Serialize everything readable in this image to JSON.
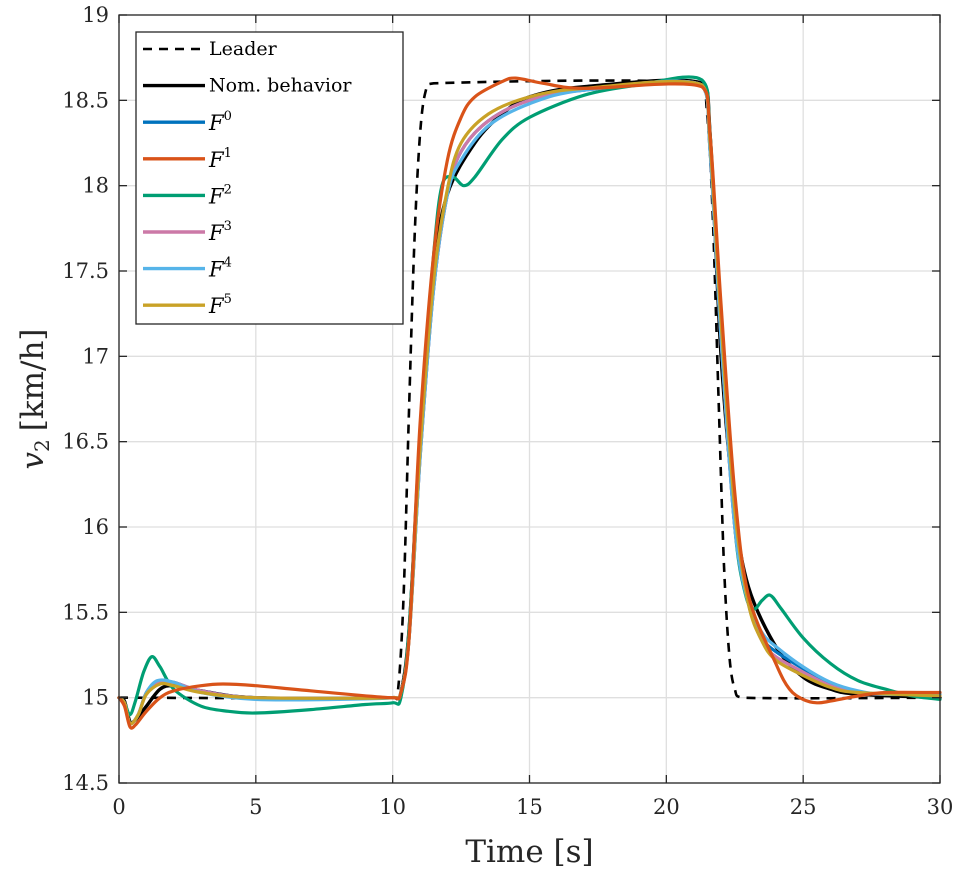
{
  "chart_data": {
    "type": "line",
    "title": "",
    "xlabel": "Time [s]",
    "ylabel_var": "v",
    "ylabel_sub": "2",
    "ylabel_unit": "[km/h]",
    "xlim": [
      0,
      30
    ],
    "ylim": [
      14.5,
      19
    ],
    "xticks": [
      0,
      5,
      10,
      15,
      20,
      25,
      30
    ],
    "yticks": [
      14.5,
      15,
      15.5,
      16,
      16.5,
      17,
      17.5,
      18,
      18.5,
      19
    ],
    "xtick_labels": [
      "0",
      "5",
      "10",
      "15",
      "20",
      "25",
      "30"
    ],
    "ytick_labels": [
      "14.5",
      "15",
      "15.5",
      "16",
      "16.5",
      "17",
      "17.5",
      "18",
      "18.5",
      "19"
    ],
    "grid": true,
    "legend_position": "top-left",
    "series": [
      {
        "name": "Leader",
        "label_text": "Leader",
        "color": "#000000",
        "dash": true,
        "width": 2.6,
        "points": [
          [
            0,
            15
          ],
          [
            10,
            15
          ],
          [
            10.2,
            15.05
          ],
          [
            10.4,
            15.6
          ],
          [
            10.6,
            16.7
          ],
          [
            10.8,
            17.7
          ],
          [
            11.0,
            18.3
          ],
          [
            11.2,
            18.55
          ],
          [
            11.5,
            18.6
          ],
          [
            21.2,
            18.6
          ],
          [
            21.5,
            18.4
          ],
          [
            21.7,
            17.8
          ],
          [
            21.9,
            16.8
          ],
          [
            22.1,
            15.8
          ],
          [
            22.3,
            15.25
          ],
          [
            22.5,
            15.05
          ],
          [
            22.8,
            15.0
          ],
          [
            30,
            15
          ]
        ]
      },
      {
        "name": "Nom. behavior",
        "label_text": "Nom. behavior",
        "color": "#000000",
        "dash": false,
        "width": 3.4,
        "points": [
          [
            0,
            15
          ],
          [
            0.2,
            14.98
          ],
          [
            0.4,
            14.86
          ],
          [
            0.6,
            14.87
          ],
          [
            1.0,
            14.95
          ],
          [
            1.5,
            15.05
          ],
          [
            2.0,
            15.07
          ],
          [
            3.0,
            15.04
          ],
          [
            5.0,
            15.0
          ],
          [
            10.0,
            15.0
          ],
          [
            10.3,
            15.03
          ],
          [
            10.6,
            15.4
          ],
          [
            11.0,
            16.5
          ],
          [
            11.5,
            17.5
          ],
          [
            12.0,
            17.95
          ],
          [
            13.0,
            18.25
          ],
          [
            14.0,
            18.42
          ],
          [
            15.0,
            18.52
          ],
          [
            17.0,
            18.58
          ],
          [
            21.3,
            18.6
          ],
          [
            21.6,
            18.3
          ],
          [
            22.0,
            17.0
          ],
          [
            22.5,
            16.1
          ],
          [
            23.0,
            15.65
          ],
          [
            24.0,
            15.3
          ],
          [
            25.0,
            15.12
          ],
          [
            26.0,
            15.05
          ],
          [
            27.0,
            15.02
          ],
          [
            30.0,
            15.0
          ]
        ]
      },
      {
        "name": "F0",
        "label_sym": "F",
        "label_sup": "0",
        "color": "#0072BD",
        "dash": false,
        "width": 3.2,
        "points": [
          [
            0,
            15
          ],
          [
            0.2,
            14.97
          ],
          [
            0.4,
            14.85
          ],
          [
            0.7,
            14.9
          ],
          [
            1.0,
            15.03
          ],
          [
            1.4,
            15.09
          ],
          [
            2.0,
            15.09
          ],
          [
            3.0,
            15.04
          ],
          [
            5.0,
            15.0
          ],
          [
            10.0,
            15.0
          ],
          [
            10.3,
            15.03
          ],
          [
            10.6,
            15.35
          ],
          [
            11.0,
            16.4
          ],
          [
            11.5,
            17.4
          ],
          [
            12.0,
            17.95
          ],
          [
            12.5,
            18.2
          ],
          [
            13.5,
            18.38
          ],
          [
            15.0,
            18.5
          ],
          [
            17.0,
            18.56
          ],
          [
            21.3,
            18.59
          ],
          [
            21.6,
            18.2
          ],
          [
            22.0,
            17.1
          ],
          [
            22.5,
            16.0
          ],
          [
            23.0,
            15.55
          ],
          [
            23.5,
            15.35
          ],
          [
            24.0,
            15.27
          ],
          [
            25.0,
            15.17
          ],
          [
            26.0,
            15.08
          ],
          [
            27.0,
            15.03
          ],
          [
            28.0,
            15.02
          ],
          [
            30.0,
            15.02
          ]
        ]
      },
      {
        "name": "F1",
        "label_sym": "F",
        "label_sup": "1",
        "color": "#D95319",
        "dash": false,
        "width": 3.2,
        "points": [
          [
            0,
            15
          ],
          [
            0.2,
            14.95
          ],
          [
            0.4,
            14.83
          ],
          [
            0.6,
            14.84
          ],
          [
            1.0,
            14.92
          ],
          [
            1.5,
            15.0
          ],
          [
            2.0,
            15.04
          ],
          [
            3.0,
            15.07
          ],
          [
            3.8,
            15.08
          ],
          [
            5.0,
            15.07
          ],
          [
            7.0,
            15.04
          ],
          [
            10.0,
            15.0
          ],
          [
            10.3,
            15.03
          ],
          [
            10.6,
            15.35
          ],
          [
            11.0,
            16.6
          ],
          [
            11.5,
            17.6
          ],
          [
            12.0,
            18.15
          ],
          [
            12.5,
            18.4
          ],
          [
            13.0,
            18.52
          ],
          [
            14.0,
            18.61
          ],
          [
            14.5,
            18.63
          ],
          [
            15.5,
            18.6
          ],
          [
            17.0,
            18.57
          ],
          [
            21.3,
            18.58
          ],
          [
            21.6,
            18.3
          ],
          [
            22.0,
            17.3
          ],
          [
            22.5,
            16.2
          ],
          [
            23.0,
            15.6
          ],
          [
            24.0,
            15.2
          ],
          [
            24.5,
            15.05
          ],
          [
            25.0,
            14.99
          ],
          [
            25.5,
            14.97
          ],
          [
            26.0,
            14.98
          ],
          [
            27.0,
            15.01
          ],
          [
            28.0,
            15.03
          ],
          [
            30.0,
            15.03
          ]
        ]
      },
      {
        "name": "F2",
        "label_sym": "F",
        "label_sup": "2",
        "color": "#009E73",
        "dash": false,
        "width": 3.2,
        "points": [
          [
            0,
            15
          ],
          [
            0.2,
            14.97
          ],
          [
            0.4,
            14.9
          ],
          [
            0.6,
            14.98
          ],
          [
            0.9,
            15.15
          ],
          [
            1.2,
            15.24
          ],
          [
            1.5,
            15.18
          ],
          [
            2.0,
            15.05
          ],
          [
            3.0,
            14.95
          ],
          [
            4.0,
            14.92
          ],
          [
            5.0,
            14.91
          ],
          [
            7.0,
            14.93
          ],
          [
            9.0,
            14.96
          ],
          [
            10.0,
            14.97
          ],
          [
            10.3,
            15.0
          ],
          [
            10.6,
            15.4
          ],
          [
            11.0,
            16.55
          ],
          [
            11.5,
            17.6
          ],
          [
            11.8,
            18.0
          ],
          [
            12.2,
            18.05
          ],
          [
            12.6,
            18.0
          ],
          [
            13.0,
            18.05
          ],
          [
            14.0,
            18.27
          ],
          [
            15.0,
            18.4
          ],
          [
            17.0,
            18.53
          ],
          [
            19.0,
            18.59
          ],
          [
            21.3,
            18.62
          ],
          [
            21.6,
            18.3
          ],
          [
            22.0,
            17.2
          ],
          [
            22.5,
            16.0
          ],
          [
            22.9,
            15.6
          ],
          [
            23.2,
            15.52
          ],
          [
            23.5,
            15.57
          ],
          [
            23.8,
            15.6
          ],
          [
            24.2,
            15.52
          ],
          [
            25.0,
            15.35
          ],
          [
            26.0,
            15.2
          ],
          [
            27.0,
            15.1
          ],
          [
            28.0,
            15.05
          ],
          [
            29.0,
            15.01
          ],
          [
            30.0,
            14.99
          ]
        ]
      },
      {
        "name": "F3",
        "label_sym": "F",
        "label_sup": "3",
        "color": "#CC79A7",
        "dash": false,
        "width": 3.2,
        "points": [
          [
            0,
            15
          ],
          [
            0.2,
            14.97
          ],
          [
            0.4,
            14.85
          ],
          [
            0.7,
            14.9
          ],
          [
            1.0,
            15.03
          ],
          [
            1.4,
            15.09
          ],
          [
            2.0,
            15.09
          ],
          [
            3.0,
            15.04
          ],
          [
            5.0,
            15.0
          ],
          [
            10.0,
            15.0
          ],
          [
            10.3,
            15.03
          ],
          [
            10.6,
            15.35
          ],
          [
            11.0,
            16.4
          ],
          [
            11.5,
            17.4
          ],
          [
            12.0,
            17.95
          ],
          [
            12.5,
            18.2
          ],
          [
            13.5,
            18.38
          ],
          [
            15.0,
            18.5
          ],
          [
            17.0,
            18.56
          ],
          [
            21.3,
            18.59
          ],
          [
            21.6,
            18.2
          ],
          [
            22.0,
            17.1
          ],
          [
            22.5,
            16.0
          ],
          [
            23.0,
            15.55
          ],
          [
            23.5,
            15.33
          ],
          [
            24.0,
            15.24
          ],
          [
            25.0,
            15.15
          ],
          [
            26.0,
            15.07
          ],
          [
            27.0,
            15.03
          ],
          [
            28.0,
            15.02
          ],
          [
            30.0,
            15.02
          ]
        ]
      },
      {
        "name": "F4",
        "label_sym": "F",
        "label_sup": "4",
        "color": "#56B4E9",
        "dash": false,
        "width": 3.2,
        "points": [
          [
            0,
            15
          ],
          [
            0.2,
            14.97
          ],
          [
            0.4,
            14.85
          ],
          [
            0.7,
            14.9
          ],
          [
            1.0,
            15.03
          ],
          [
            1.4,
            15.1
          ],
          [
            2.0,
            15.09
          ],
          [
            3.0,
            15.03
          ],
          [
            5.0,
            14.99
          ],
          [
            8.0,
            14.99
          ],
          [
            10.0,
            15.0
          ],
          [
            10.3,
            15.03
          ],
          [
            10.6,
            15.35
          ],
          [
            11.0,
            16.4
          ],
          [
            11.5,
            17.4
          ],
          [
            12.0,
            17.95
          ],
          [
            12.5,
            18.15
          ],
          [
            13.5,
            18.35
          ],
          [
            15.0,
            18.48
          ],
          [
            17.0,
            18.56
          ],
          [
            21.3,
            18.59
          ],
          [
            21.6,
            18.2
          ],
          [
            22.0,
            17.1
          ],
          [
            22.5,
            16.0
          ],
          [
            23.0,
            15.55
          ],
          [
            23.5,
            15.38
          ],
          [
            24.0,
            15.3
          ],
          [
            25.0,
            15.18
          ],
          [
            26.0,
            15.09
          ],
          [
            27.0,
            15.04
          ],
          [
            28.0,
            15.02
          ],
          [
            30.0,
            15.02
          ]
        ]
      },
      {
        "name": "F5",
        "label_sym": "F",
        "label_sup": "5",
        "color": "#C9A227",
        "dash": false,
        "width": 3.2,
        "points": [
          [
            0,
            15
          ],
          [
            0.2,
            14.97
          ],
          [
            0.4,
            14.85
          ],
          [
            0.7,
            14.9
          ],
          [
            1.0,
            15.02
          ],
          [
            1.5,
            15.08
          ],
          [
            2.0,
            15.07
          ],
          [
            3.0,
            15.03
          ],
          [
            5.0,
            15.0
          ],
          [
            10.0,
            15.0
          ],
          [
            10.3,
            15.03
          ],
          [
            10.6,
            15.35
          ],
          [
            11.0,
            16.45
          ],
          [
            11.5,
            17.45
          ],
          [
            12.0,
            17.98
          ],
          [
            12.5,
            18.25
          ],
          [
            13.5,
            18.42
          ],
          [
            15.0,
            18.52
          ],
          [
            17.0,
            18.57
          ],
          [
            21.3,
            18.59
          ],
          [
            21.6,
            18.25
          ],
          [
            22.0,
            17.2
          ],
          [
            22.5,
            16.1
          ],
          [
            23.0,
            15.55
          ],
          [
            23.5,
            15.33
          ],
          [
            24.0,
            15.22
          ],
          [
            25.0,
            15.13
          ],
          [
            26.0,
            15.06
          ],
          [
            27.0,
            15.03
          ],
          [
            30.0,
            15.01
          ]
        ]
      }
    ]
  }
}
